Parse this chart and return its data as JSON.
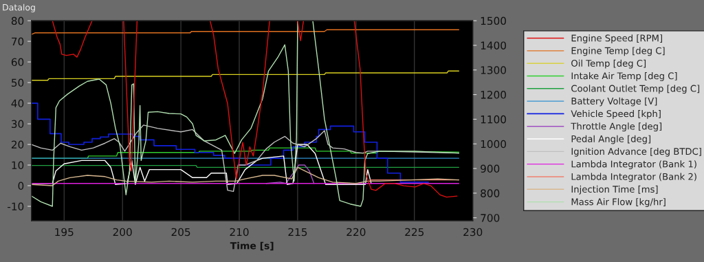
{
  "chart_data": {
    "type": "line",
    "title": "Datalog",
    "xlabel": "Time [s]",
    "xlim": [
      192.2,
      230
    ],
    "xticks": [
      195,
      200,
      205,
      210,
      215,
      220,
      225,
      230
    ],
    "ylim": [
      -17,
      80
    ],
    "yticks": [
      -10,
      0,
      10,
      20,
      30,
      40,
      50,
      60,
      70,
      80
    ],
    "y2lim": [
      688,
      1500
    ],
    "y2ticks": [
      700,
      800,
      900,
      1000,
      1100,
      1200,
      1300,
      1400,
      1500
    ],
    "grid": "x",
    "legend": "right",
    "series": [
      {
        "name": "Engine Speed [RPM]",
        "color": "#e01010",
        "axis": "y2",
        "x": [
          194.0,
          194.4,
          194.65,
          194.8,
          195.2,
          195.8,
          196.1,
          196.4,
          196.8,
          197.4,
          199.0,
          200.1,
          200.6,
          200.75,
          201.25,
          204.0,
          207.5,
          207.8,
          208.2,
          209.0,
          209.55,
          209.75,
          210.0,
          210.3,
          210.6,
          210.9,
          211.2,
          211.5,
          212.0,
          212.6,
          214.0,
          215.0,
          215.25,
          215.5,
          218.0,
          219.85,
          220.35,
          220.65,
          220.85,
          221.3,
          221.7,
          222.5,
          223.3,
          224.1,
          225.05,
          225.8,
          226.4,
          227.2,
          227.75,
          228.65
        ],
        "values": [
          1500,
          1433,
          1405,
          1364,
          1359,
          1364,
          1352,
          1382,
          1433,
          1500,
          null,
          1500,
          932,
          890,
          1500,
          null,
          1500,
          1442,
          1303,
          1164,
          932,
          858,
          932,
          1006,
          913,
          988,
          951,
          1043,
          1210,
          1500,
          null,
          1500,
          1419,
          1500,
          null,
          1500,
          1303,
          1025,
          876,
          816,
          811,
          839,
          839,
          830,
          825,
          839,
          830,
          793,
          784,
          788
        ]
      },
      {
        "name": "Engine Temp [deg C]",
        "color": "#e07020",
        "x": [
          192.2,
          192.5,
          205.8,
          205.9,
          217.3,
          217.5,
          228.8
        ],
        "values": [
          73.3,
          74.1,
          74.1,
          74.8,
          74.8,
          75.6,
          75.6
        ]
      },
      {
        "name": "Oil Temp [deg C]",
        "color": "#d8d020",
        "x": [
          192.2,
          193.6,
          193.7,
          199.3,
          199.4,
          207.6,
          207.7,
          217.3,
          217.4,
          227.8,
          227.9,
          228.8
        ],
        "values": [
          51.1,
          51.1,
          51.9,
          51.9,
          53.0,
          53.0,
          53.9,
          53.9,
          54.7,
          54.7,
          55.6,
          55.6
        ]
      },
      {
        "name": "Intake Air Temp [deg C]",
        "color": "#30d030",
        "x": [
          192.2,
          197.0,
          197.1,
          199.5,
          199.6,
          206.5,
          206.6,
          211.0,
          211.1,
          212.5,
          212.6,
          216.5,
          216.6,
          219.5,
          219.6,
          221.8,
          221.9,
          228.8
        ],
        "values": [
          13.3,
          13.3,
          14.4,
          14.4,
          16.1,
          16.1,
          16.7,
          16.7,
          17.2,
          17.2,
          18.3,
          18.3,
          16.7,
          16.7,
          15.8,
          15.8,
          16.7,
          16.3
        ]
      },
      {
        "name": "Coolant Outlet Temp [deg C]",
        "color": "#20a040",
        "x": [
          192.2,
          206.3,
          206.4,
          228.8
        ],
        "values": [
          9.8,
          9.8,
          8.9,
          8.9
        ]
      },
      {
        "name": "Battery Voltage [V]",
        "color": "#3090d0",
        "x": [
          192.2,
          228.8
        ],
        "values": [
          13.3,
          13.3
        ]
      },
      {
        "name": "Vehicle Speed [kph]",
        "color": "#1020e0",
        "type": "step",
        "x": [
          192.2,
          192.74,
          193.8,
          194.75,
          195.4,
          196.7,
          197.4,
          198.1,
          198.8,
          200.9,
          201.5,
          202.7,
          204.6,
          206.2,
          207.8,
          208.75,
          210.0,
          212.7,
          213.8,
          214.6,
          215.6,
          216.6,
          216.8,
          217.8,
          219.8,
          220.75,
          221.8,
          222.7,
          223.8,
          224.9,
          226.2
        ],
        "values": [
          40,
          32.2,
          25.2,
          21.1,
          20,
          21.1,
          22.8,
          23.6,
          25,
          23.9,
          22.2,
          19.4,
          17.6,
          16.1,
          14.7,
          13.3,
          10,
          13.3,
          17.2,
          18.9,
          21.1,
          23.9,
          27.2,
          28.9,
          26.1,
          21.1,
          13.3,
          6.1,
          1.7,
          1.7,
          1.7
        ]
      },
      {
        "name": "Throttle Angle [deg]",
        "color": "#a050c0",
        "x": [
          212.3,
          213.5,
          214.0,
          215.1,
          215.6,
          216.0,
          216.4
        ],
        "values": [
          1.1,
          1.7,
          1.1,
          10,
          10,
          7.2,
          1.1
        ]
      },
      {
        "name": "Pedal Angle [deg]",
        "color": "#ffffff",
        "x": [
          192.2,
          194.0,
          194.3,
          195.0,
          196.5,
          198.5,
          199.0,
          199.4,
          200.4,
          200.8,
          201.1,
          201.5,
          201.9,
          202.3,
          205.0,
          206.0,
          207.2,
          207.6,
          208.9,
          209.0,
          209.8,
          210.5,
          211.5,
          212.0,
          213.8,
          214.1,
          214.6,
          215.0,
          215.8,
          216.5,
          217.1,
          217.4,
          220.8,
          221.0,
          221.3
        ],
        "values": [
          1.1,
          1.1,
          7.2,
          10.6,
          12.2,
          12.2,
          8.9,
          0.6,
          1.1,
          12.2,
          0.6,
          8.9,
          2.2,
          7.8,
          7.8,
          3.9,
          3.9,
          6.1,
          6.1,
          0.6,
          1.1,
          7.8,
          12.2,
          13.3,
          14.4,
          0.6,
          1.1,
          20,
          20,
          15.6,
          5.6,
          0.6,
          0.6,
          7.8,
          1.1
        ]
      },
      {
        "name": "Ignition Advance [deg BTDC]",
        "color": "#c0c0c0",
        "x": [
          192.2,
          193.0,
          194.0,
          194.7,
          195.5,
          196.5,
          197.5,
          198.5,
          199.3,
          199.7,
          200.2,
          201.2,
          201.8,
          203.0,
          205.0,
          206.0,
          207.0,
          208.5,
          209.0,
          209.5,
          209.9,
          210.5,
          211.5,
          212.3,
          213.0,
          213.9,
          214.6,
          215.6,
          216.6,
          217.3,
          217.6,
          218.0,
          219.0,
          220.0,
          220.6,
          221.0,
          222.0,
          228.8
        ],
        "values": [
          20,
          18.3,
          17.2,
          20.6,
          18.9,
          17.2,
          18.3,
          20.6,
          22.8,
          21.1,
          16.7,
          25.6,
          29.4,
          27.8,
          26.1,
          27.2,
          21.7,
          17.2,
          -2.2,
          -2.8,
          10,
          10,
          12.2,
          17.8,
          21.1,
          23.9,
          20.6,
          18.9,
          22.8,
          26.7,
          20,
          18.3,
          17.8,
          16.1,
          15.8,
          16.7,
          16.7,
          15.8
        ]
      },
      {
        "name": "Lambda Integrator (Bank 1)",
        "color": "#e020e0",
        "x": [
          192.2,
          228.8
        ],
        "values": [
          1.1,
          1.1
        ]
      },
      {
        "name": "Lambda Integrator (Bank 2)",
        "color": "#f08070",
        "x": [
          221.2,
          228.8
        ],
        "values": [
          2.8,
          2.8
        ]
      },
      {
        "name": "Injection Time [ms]",
        "color": "#d8b890",
        "x": [
          192.2,
          194.0,
          194.5,
          195.5,
          197.0,
          198.5,
          199.5,
          200.3,
          202.5,
          204.0,
          206.0,
          208.0,
          209.7,
          210.5,
          212.0,
          213.0,
          214.5,
          215.0,
          215.6,
          216.8,
          218.0,
          220.0,
          221.0,
          222.0,
          227.0,
          228.8
        ],
        "values": [
          0.6,
          0,
          2.2,
          3.9,
          5,
          4.4,
          2.8,
          2.2,
          1.7,
          2.2,
          1.7,
          2.2,
          2.2,
          3.3,
          5,
          5,
          3.3,
          8.9,
          7.2,
          3.9,
          1.7,
          1.1,
          2.2,
          2.2,
          3.3,
          2.8
        ]
      },
      {
        "name": "Mass Air Flow [kg/hr]",
        "color": "#b0e0b0",
        "x": [
          192.2,
          193.0,
          194.0,
          194.1,
          194.3,
          194.6,
          195.3,
          196.3,
          197.0,
          198.0,
          198.6,
          199.0,
          199.4,
          199.8,
          200.3,
          200.6,
          200.8,
          200.95,
          201.1,
          201.4,
          201.5,
          201.6,
          202.0,
          202.2,
          203.0,
          204.0,
          205.0,
          205.5,
          206.0,
          206.3,
          207.0,
          208.0,
          208.8,
          209.3,
          209.6,
          210.2,
          211.0,
          212.0,
          212.5,
          213.3,
          213.9,
          214.2,
          214.4,
          214.7,
          214.9,
          215.0,
          215.6,
          216.3,
          216.8,
          217.3,
          217.8,
          218.3,
          218.6,
          219.5,
          220.4,
          220.6,
          220.75,
          221.0,
          222.0,
          225.0,
          228.8
        ],
        "values": [
          -5,
          -7.8,
          -10,
          12.2,
          37.8,
          41.1,
          44.4,
          48.3,
          50.6,
          51.7,
          48.9,
          40,
          27.8,
          18.9,
          -4.4,
          6.7,
          48.9,
          49.4,
          1.1,
          21.1,
          38.9,
          12.2,
          21.7,
          35.6,
          35.9,
          35,
          34.8,
          33.3,
          30,
          24.4,
          21.7,
          22.2,
          24.4,
          18.9,
          15.6,
          22.2,
          27.8,
          42.2,
          55.6,
          62.2,
          68.3,
          55.6,
          21.1,
          2.2,
          23.3,
          79.8,
          null,
          79.8,
          56.7,
          32.2,
          17.8,
          3.3,
          -7.2,
          -8.9,
          -10,
          -6.7,
          12.2,
          15.6,
          16.7,
          16.7,
          15.8
        ]
      }
    ]
  }
}
